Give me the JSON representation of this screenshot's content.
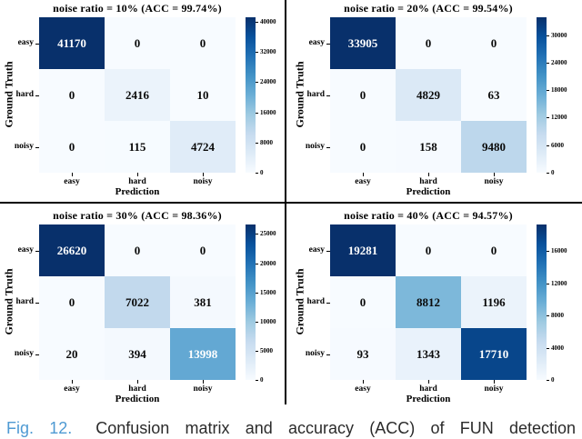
{
  "caption": {
    "label": "Fig. 12.",
    "text": "Confusion matrix and accuracy (ACC) of FUN detection"
  },
  "shared": {
    "xlabel": "Prediction",
    "ylabel": "Ground Truth",
    "classes": [
      "easy",
      "hard",
      "noisy"
    ]
  },
  "colors": {
    "colormap_max": "#08306b",
    "colormap_min": "#f7fbff",
    "fig_label_blue": "#4f9ad3",
    "caption_text": "#2b2b2b",
    "divider": "#000000"
  },
  "chart_data": [
    {
      "type": "heatmap",
      "title": "noise ratio = 10% (ACC = 99.74%)",
      "noise_ratio": "10%",
      "acc": "99.74%",
      "xlabel": "Prediction",
      "ylabel": "Ground Truth",
      "x_categories": [
        "easy",
        "hard",
        "noisy"
      ],
      "y_categories": [
        "easy",
        "hard",
        "noisy"
      ],
      "values": [
        [
          41170,
          0,
          0
        ],
        [
          0,
          2416,
          10
        ],
        [
          0,
          115,
          4724
        ]
      ],
      "vmin": 0,
      "vmax": 41170,
      "colormap": "Blues",
      "colorbar_ticks": [
        40000,
        32000,
        24000,
        16000,
        8000,
        0
      ]
    },
    {
      "type": "heatmap",
      "title": "noise ratio = 20% (ACC = 99.54%)",
      "noise_ratio": "20%",
      "acc": "99.54%",
      "xlabel": "Prediction",
      "ylabel": "Ground Truth",
      "x_categories": [
        "easy",
        "hard",
        "noisy"
      ],
      "y_categories": [
        "easy",
        "hard",
        "noisy"
      ],
      "values": [
        [
          33905,
          0,
          0
        ],
        [
          0,
          4829,
          63
        ],
        [
          0,
          158,
          9480
        ]
      ],
      "vmin": 0,
      "vmax": 33905,
      "colormap": "Blues",
      "colorbar_ticks": [
        30000,
        24000,
        18000,
        12000,
        6000,
        0
      ]
    },
    {
      "type": "heatmap",
      "title": "noise ratio = 30% (ACC = 98.36%)",
      "noise_ratio": "30%",
      "acc": "98.36%",
      "xlabel": "Prediction",
      "ylabel": "Ground Truth",
      "x_categories": [
        "easy",
        "hard",
        "noisy"
      ],
      "y_categories": [
        "easy",
        "hard",
        "noisy"
      ],
      "values": [
        [
          26620,
          0,
          0
        ],
        [
          0,
          7022,
          381
        ],
        [
          20,
          394,
          13998
        ]
      ],
      "vmin": 0,
      "vmax": 26620,
      "colormap": "Blues",
      "colorbar_ticks": [
        25000,
        20000,
        15000,
        10000,
        5000,
        0
      ]
    },
    {
      "type": "heatmap",
      "title": "noise ratio = 40% (ACC = 94.57%)",
      "noise_ratio": "40%",
      "acc": "94.57%",
      "xlabel": "Prediction",
      "ylabel": "Ground Truth",
      "x_categories": [
        "easy",
        "hard",
        "noisy"
      ],
      "y_categories": [
        "easy",
        "hard",
        "noisy"
      ],
      "values": [
        [
          19281,
          0,
          0
        ],
        [
          0,
          8812,
          1196
        ],
        [
          93,
          1343,
          17710
        ]
      ],
      "vmin": 0,
      "vmax": 19281,
      "colormap": "Blues",
      "colorbar_ticks": [
        16000,
        12000,
        8000,
        4000,
        0
      ]
    }
  ]
}
